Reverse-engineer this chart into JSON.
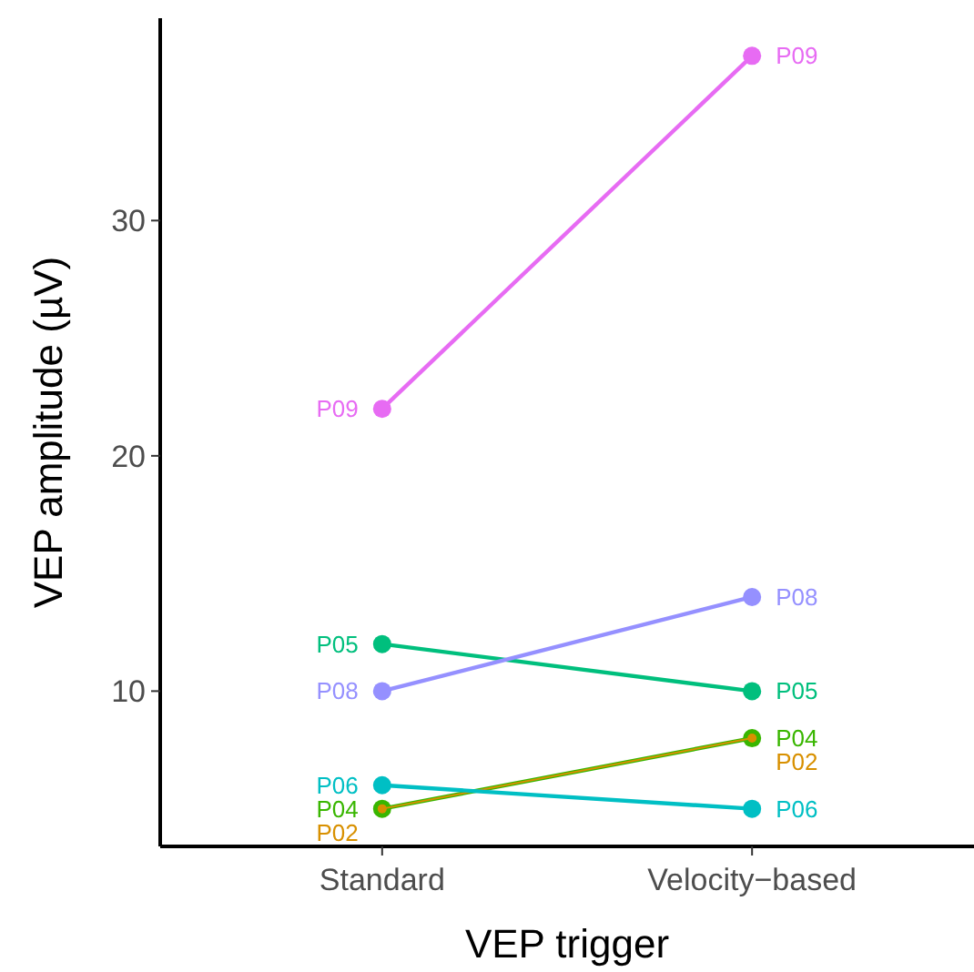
{
  "chart_data": {
    "type": "line",
    "xlabel": "VEP trigger",
    "ylabel": "VEP amplitude (µV)",
    "categories": [
      "Standard",
      "Velocity−based"
    ],
    "ylim": [
      3.4,
      38.6
    ],
    "yticks": [
      10,
      20,
      30
    ],
    "grid": false,
    "marker": "circle",
    "line_style": "solid",
    "series": [
      {
        "name": "P04",
        "color": "#39b600",
        "values": [
          5,
          8
        ]
      },
      {
        "name": "P02",
        "color": "#d89000",
        "values": [
          5,
          8
        ]
      },
      {
        "name": "P05",
        "color": "#00bf7d",
        "values": [
          12,
          10
        ]
      },
      {
        "name": "P06",
        "color": "#00bfc4",
        "values": [
          6,
          5
        ]
      },
      {
        "name": "P08",
        "color": "#9590ff",
        "values": [
          10,
          14
        ]
      },
      {
        "name": "P09",
        "color": "#e76bf3",
        "values": [
          22,
          37
        ]
      }
    ]
  }
}
